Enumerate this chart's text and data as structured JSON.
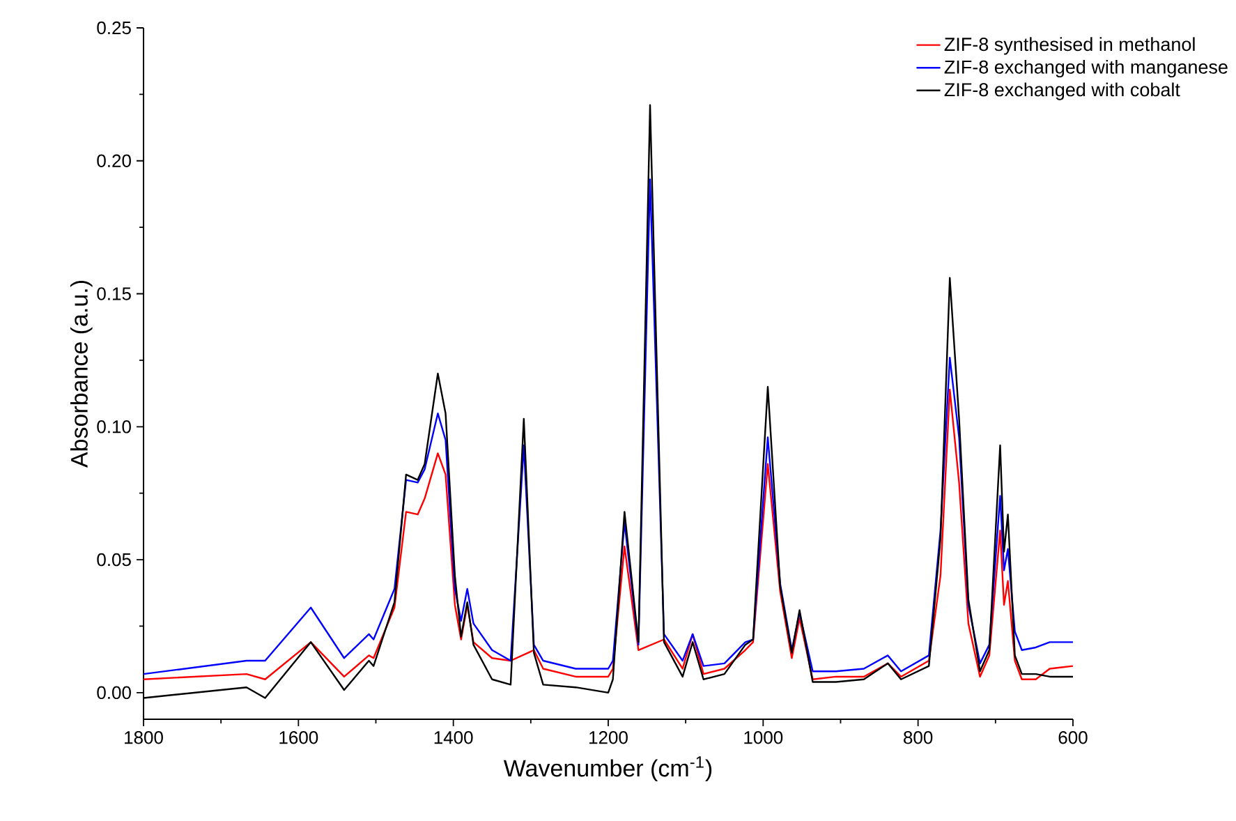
{
  "chart_data": {
    "type": "line",
    "xlabel": "Wavenumber (cm$^{-1}$)",
    "ylabel": "Absorbance (a.u.)",
    "xlim": [
      1800,
      600
    ],
    "xticks": [
      1800,
      1600,
      1400,
      1200,
      1000,
      800,
      600
    ],
    "ylim": [
      -0.01,
      0.25
    ],
    "yticks": [
      {
        "value": 0,
        "label": "0.00"
      },
      {
        "value": 0.05,
        "label": "0.05"
      },
      {
        "value": 0.1,
        "label": "0.10"
      },
      {
        "value": 0.15,
        "label": "0.15"
      },
      {
        "value": 0.2,
        "label": "0.20"
      },
      {
        "value": 0.25,
        "label": "0.25"
      }
    ],
    "legend": "top right",
    "marker": "none",
    "line_style": "solid",
    "x": [
      1800,
      1667,
      1643,
      1584,
      1541,
      1509,
      1503,
      1476,
      1461,
      1446,
      1437,
      1420,
      1410,
      1398,
      1390,
      1382,
      1374,
      1350,
      1326,
      1309,
      1296,
      1284,
      1242,
      1200,
      1194,
      1179,
      1161,
      1146,
      1128,
      1104,
      1091,
      1077,
      1050,
      1023,
      1013,
      994,
      978,
      963,
      953,
      936,
      906,
      870,
      839,
      822,
      786,
      771,
      759,
      747,
      735,
      720,
      708,
      694,
      689,
      684,
      675,
      666,
      648,
      630,
      600
    ],
    "series": [
      {
        "name": "ZIF-8 synthesised in methanol",
        "color": "#ff0000",
        "values": [
          0.005,
          0.007,
          0.005,
          0.019,
          0.006,
          0.014,
          0.013,
          0.032,
          0.068,
          0.067,
          0.073,
          0.09,
          0.082,
          0.033,
          0.02,
          0.033,
          0.019,
          0.013,
          0.012,
          null,
          0.016,
          0.009,
          0.006,
          0.006,
          0.009,
          0.055,
          0.016,
          null,
          0.02,
          0.009,
          0.022,
          0.007,
          0.009,
          0.016,
          0.019,
          0.086,
          0.038,
          0.013,
          0.028,
          0.005,
          0.006,
          0.006,
          0.011,
          0.006,
          0.012,
          0.044,
          0.114,
          0.079,
          0.026,
          0.006,
          0.014,
          0.061,
          0.033,
          0.042,
          0.012,
          0.005,
          0.005,
          0.009,
          0.01
        ]
      },
      {
        "name": "ZIF-8 exchanged with manganese",
        "color": "#0000ff",
        "values": [
          0.007,
          0.012,
          0.012,
          0.032,
          0.013,
          0.022,
          0.02,
          0.039,
          0.08,
          0.079,
          0.084,
          0.105,
          0.095,
          0.039,
          0.027,
          0.039,
          0.026,
          0.016,
          0.012,
          0.093,
          0.018,
          0.012,
          0.009,
          0.009,
          0.012,
          0.064,
          0.018,
          0.193,
          0.022,
          0.012,
          0.022,
          0.01,
          0.011,
          0.019,
          0.02,
          0.096,
          0.041,
          0.016,
          0.03,
          0.008,
          0.008,
          0.009,
          0.014,
          0.008,
          0.014,
          0.061,
          0.126,
          0.096,
          0.033,
          0.011,
          0.018,
          0.074,
          0.046,
          0.054,
          0.023,
          0.016,
          0.017,
          0.019,
          0.019
        ]
      },
      {
        "name": "ZIF-8 exchanged with cobalt",
        "color": "#000000",
        "values": [
          -0.002,
          0.002,
          -0.002,
          0.019,
          0.001,
          0.012,
          0.01,
          0.034,
          0.082,
          0.08,
          0.086,
          0.12,
          0.105,
          0.044,
          0.021,
          0.034,
          0.018,
          0.005,
          0.003,
          0.103,
          0.015,
          0.003,
          0.002,
          0.0,
          0.005,
          0.068,
          0.019,
          0.221,
          0.019,
          0.006,
          0.019,
          0.005,
          0.007,
          0.018,
          0.02,
          0.115,
          0.04,
          0.015,
          0.031,
          0.004,
          0.004,
          0.005,
          0.011,
          0.005,
          0.01,
          0.058,
          0.156,
          0.103,
          0.035,
          0.008,
          0.016,
          0.093,
          0.053,
          0.067,
          0.014,
          0.007,
          0.007,
          0.006,
          0.006
        ]
      }
    ]
  }
}
